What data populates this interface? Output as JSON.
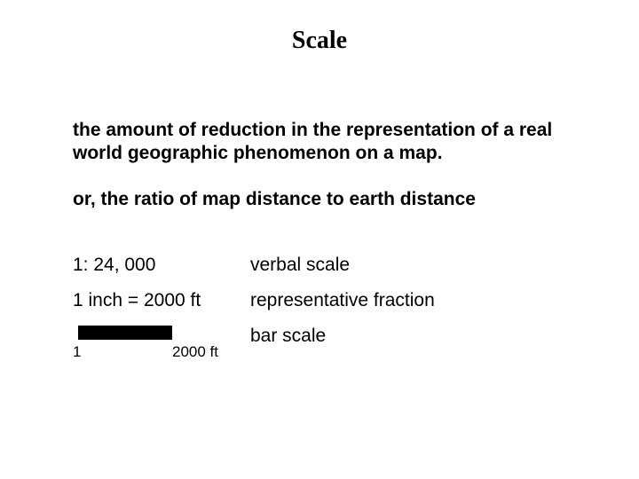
{
  "title": "Scale",
  "definition1": "the amount of reduction in the representation of a real world geographic phenomenon on a map.",
  "definition2": "or, the ratio of map distance to earth distance",
  "rows": {
    "r1": {
      "left": "1: 24, 000",
      "right": "verbal scale"
    },
    "r2": {
      "left": "1 inch = 2000 ft",
      "right": "representative fraction"
    },
    "r3": {
      "right": "bar scale"
    }
  },
  "barScale": {
    "leftLabel": "1",
    "rightLabel": "2000 ft",
    "barColor": "#000000",
    "barWidthPx": 106,
    "barHeightPx": 16
  },
  "colors": {
    "background": "#ffffff",
    "text": "#000000"
  },
  "fonts": {
    "titleFamily": "Times New Roman",
    "titleSizePt": 28,
    "bodyFamily": "Arial",
    "bodySizePt": 21,
    "barLabelSizePt": 17
  }
}
